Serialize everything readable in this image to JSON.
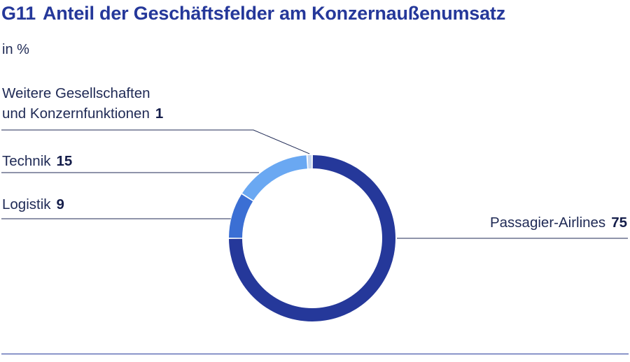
{
  "header": {
    "code": "G11",
    "title": "Anteil der Geschäftsfelder am Konzernaußenumsatz",
    "unit": "in %"
  },
  "chart_data": {
    "type": "pie",
    "title": "Anteil der Geschäftsfelder am Konzernaußenumsatz",
    "subtitle": "in %",
    "donut": true,
    "slices": [
      {
        "key": "pax",
        "label": "Passagier-Airlines",
        "value": 75,
        "color": "#25389a"
      },
      {
        "key": "logistik",
        "label": "Logistik",
        "value": 9,
        "color": "#3b6fd4"
      },
      {
        "key": "technik",
        "label": "Technik",
        "value": 15,
        "color": "#6aa8f2"
      },
      {
        "key": "other",
        "label_line1": "Weitere Gesellschaften",
        "label_line2": "und Konzernfunktionen",
        "value": 1,
        "color": "#c5d6f0"
      }
    ],
    "start": "top",
    "direction": "clockwise"
  }
}
